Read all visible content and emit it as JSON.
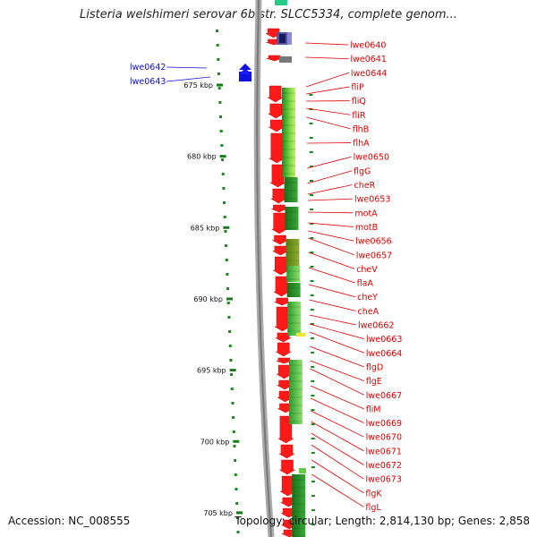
{
  "title": "Listeria welshimeri serovar 6b str. SLCC5334, complete genom...",
  "footer": {
    "accession": "Accession: NC_008555",
    "topology": "Topology: circular; Length: 2,814,130 bp; Genes: 2,858"
  },
  "colors": {
    "forward_gene": "#ff1a1a",
    "reverse_gene": "#1010e0",
    "right_label": "#dd0000",
    "left_label": "#1010cc",
    "backbone": "#999999",
    "gc_track": "#2a8a2a"
  },
  "ruler": [
    {
      "kbp": 675,
      "label": "675 kbp"
    },
    {
      "kbp": 680,
      "label": "680 kbp"
    },
    {
      "kbp": 685,
      "label": "685 kbp"
    },
    {
      "kbp": 690,
      "label": "690 kbp"
    },
    {
      "kbp": 695,
      "label": "695 kbp"
    },
    {
      "kbp": 700,
      "label": "700 kbp"
    },
    {
      "kbp": 705,
      "label": "705 kbp"
    }
  ],
  "left_labels": [
    "lwe0642",
    "lwe0643"
  ],
  "right_labels": [
    "lwe0640",
    "lwe0641",
    "lwe0644",
    "fliP",
    "fliQ",
    "fliR",
    "flhB",
    "flhA",
    "lwe0650",
    "flgG",
    "cheR",
    "lwe0653",
    "motA",
    "motB",
    "lwe0656",
    "lwe0657",
    "cheV",
    "flaA",
    "cheY",
    "cheA",
    "lwe0662",
    "lwe0663",
    "lwe0664",
    "flgD",
    "flgE",
    "lwe0667",
    "fliM",
    "lwe0669",
    "lwe0670",
    "lwe0671",
    "lwe0672",
    "lwe0673",
    "flgK",
    "flgL"
  ]
}
